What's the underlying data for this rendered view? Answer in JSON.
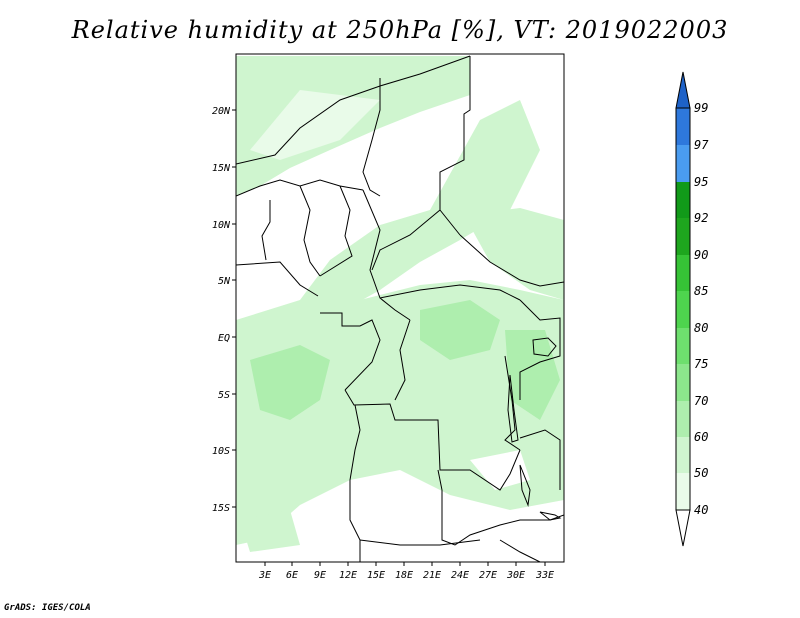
{
  "title": "Relative humidity at 250hPa [%], VT: 2019022003",
  "credit": "GrADS: IGES/COLA",
  "map": {
    "lat_labels": [
      "20N",
      "15N",
      "10N",
      "5N",
      "EQ",
      "5S",
      "10S",
      "15S"
    ],
    "lon_labels": [
      "3E",
      "6E",
      "9E",
      "12E",
      "15E",
      "18E",
      "21E",
      "24E",
      "27E",
      "30E",
      "33E"
    ]
  },
  "colorbar": {
    "levels": [
      "99",
      "97",
      "95",
      "92",
      "90",
      "85",
      "80",
      "75",
      "70",
      "60",
      "50",
      "40"
    ],
    "colors": {
      "above_97": "#1e62c8",
      "97_99": "#2e78dc",
      "95_97": "#4a9cf0",
      "92_95": "#119a19",
      "90_92": "#1ea61e",
      "85_90": "#36c336",
      "80_85": "#4ed44e",
      "75_80": "#6edf6e",
      "70_75": "#8ce68c",
      "60_70": "#aeeeae",
      "50_60": "#cff5cf",
      "40_50": "#e9fbe9",
      "below_40": "#ffffff"
    }
  }
}
